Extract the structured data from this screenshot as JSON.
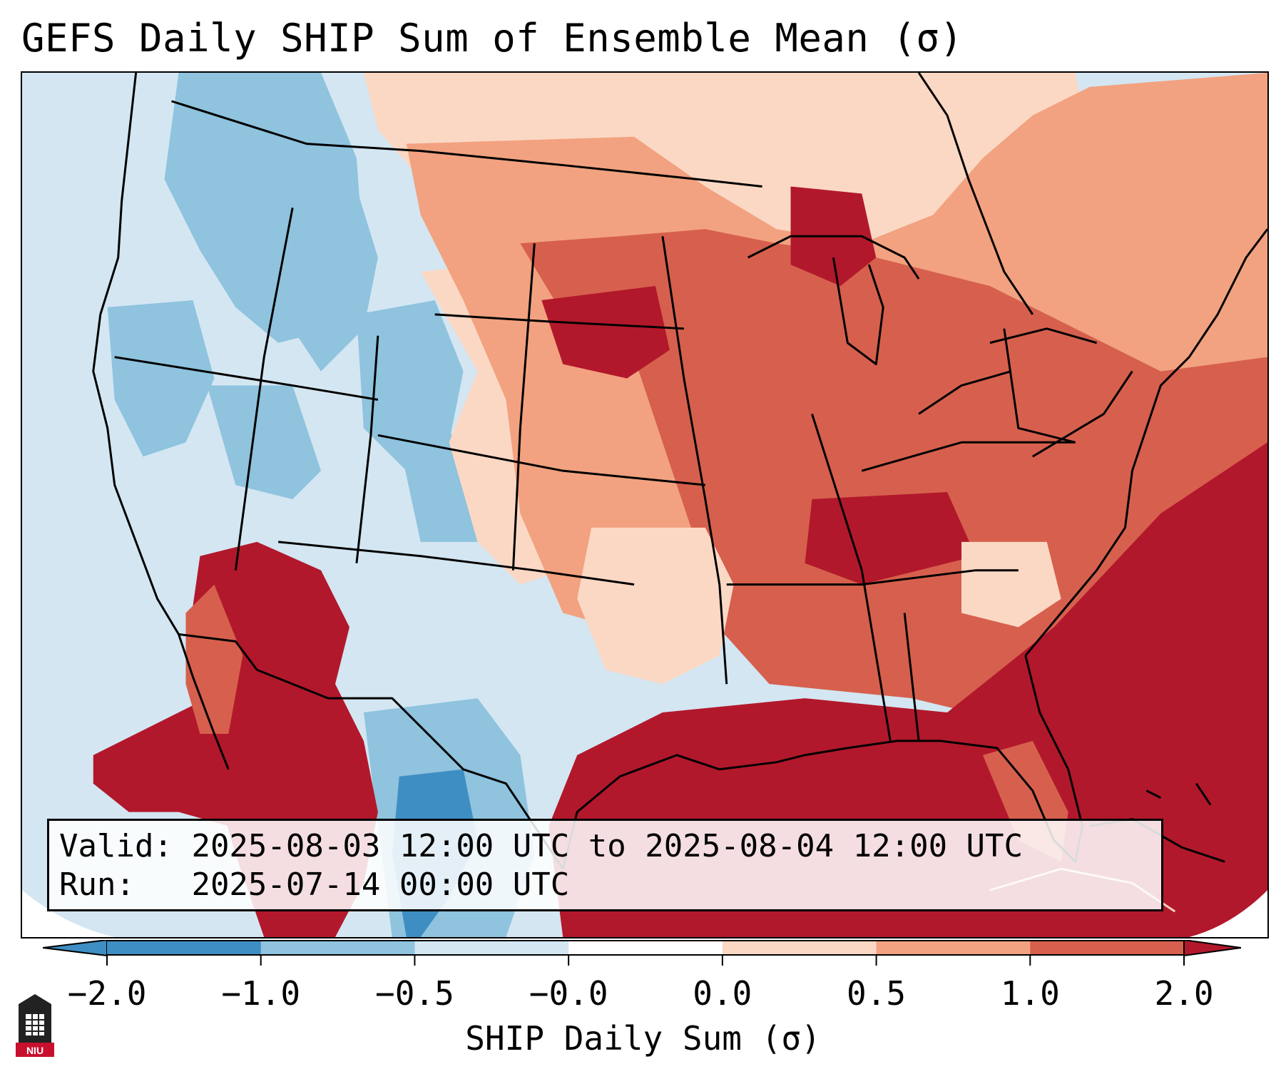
{
  "title": "GEFS Daily SHIP Sum of Ensemble Mean (σ)",
  "info": {
    "valid_label": "Valid:",
    "valid_value": "2025-08-03 12:00 UTC to 2025-08-04 12:00 UTC",
    "run_label": "Run:",
    "run_value": "2025-07-14 00:00 UTC"
  },
  "colorbar": {
    "label": "SHIP Daily Sum (σ)",
    "ticks": [
      "−2.0",
      "−1.0",
      "−0.5",
      "−0.0",
      "0.0",
      "0.5",
      "1.0",
      "2.0"
    ],
    "colors": [
      "#3f8ec3",
      "#8fc3de",
      "#d3e6f2",
      "#ffffff",
      "#fbd8c4",
      "#f2a280",
      "#d6604d",
      "#b2182b"
    ],
    "extend": "both"
  },
  "map": {
    "region": "Contiguous United States",
    "ocean_color": "#d3e6f2",
    "land_outline_color": "#000000"
  },
  "logo": {
    "name": "NIU"
  }
}
